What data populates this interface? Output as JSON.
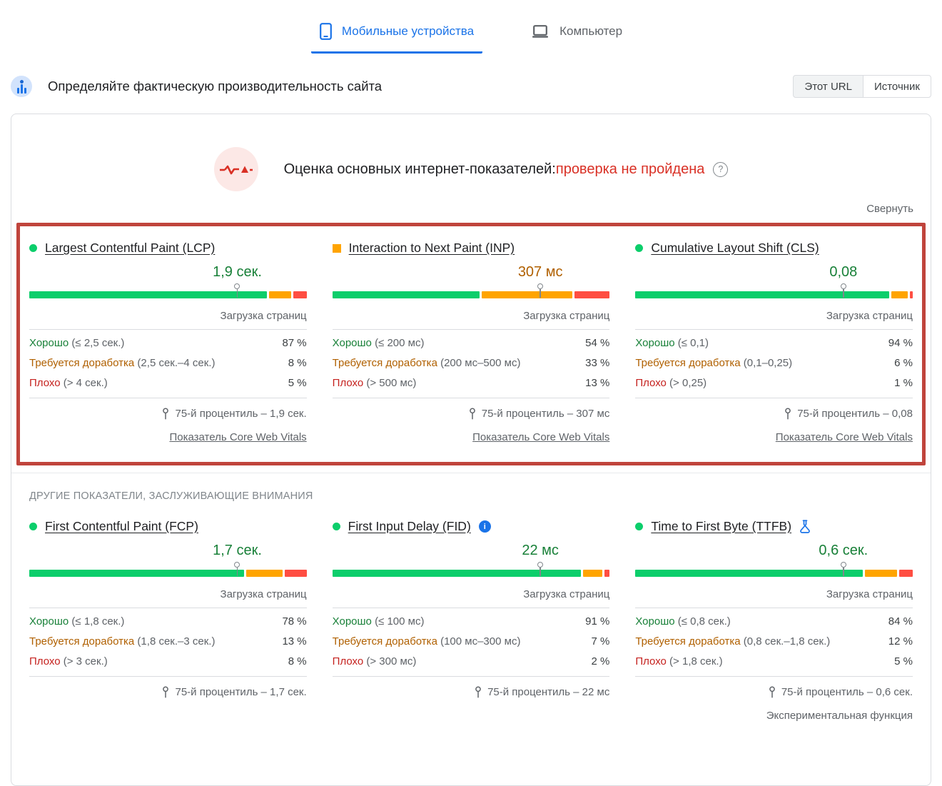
{
  "tabs": [
    {
      "label": "Мобильные устройства",
      "active": true
    },
    {
      "label": "Компьютер",
      "active": false
    }
  ],
  "header": {
    "title": "Определяйте фактическую производительность сайта",
    "scope_buttons": [
      {
        "label": "Этот URL",
        "selected": true
      },
      {
        "label": "Источник",
        "selected": false
      }
    ]
  },
  "assessment": {
    "prefix": "Оценка основных интернет-показателей:",
    "status": "проверка не пройдена",
    "help_icon": "question-mark",
    "collapse_label": "Свернуть"
  },
  "labels": {
    "page_loads": "Загрузка страниц",
    "other_section": "ДРУГИЕ ПОКАЗАТЕЛИ, ЗАСЛУЖИВАЮЩИЕ ВНИМАНИЯ"
  },
  "colors": {
    "accent_blue": "#1a73e8",
    "bar_good": "#0cce6b",
    "bar_ni": "#ffa400",
    "bar_poor": "#ff4e42",
    "text_good": "#188038",
    "text_ni": "#b06000",
    "text_poor": "#c5221f",
    "status_failed_red": "#d93025",
    "highlight_border_red": "#c0443c"
  },
  "core_metrics": [
    {
      "id": "lcp",
      "status": "good",
      "title": "Largest Contentful Paint (LCP)",
      "value": "1,9 сек.",
      "pin_percent": 75,
      "distribution": {
        "good": 87,
        "ni": 8,
        "poor": 5
      },
      "rows": [
        {
          "name": "Хорошо",
          "range": "(≤ 2,5 сек.)",
          "percent": "87 %"
        },
        {
          "name": "Требуется доработка",
          "range": "(2,5 сек.–4 сек.)",
          "percent": "8 %"
        },
        {
          "name": "Плохо",
          "range": "(> 4 сек.)",
          "percent": "5 %"
        }
      ],
      "percentile": "75-й процентиль – 1,9 сек.",
      "footer_link": "Показатель Core Web Vitals"
    },
    {
      "id": "inp",
      "status": "ni",
      "title": "Interaction to Next Paint (INP)",
      "value": "307 мс",
      "pin_percent": 75,
      "distribution": {
        "good": 54,
        "ni": 33,
        "poor": 13
      },
      "rows": [
        {
          "name": "Хорошо",
          "range": "(≤ 200 мс)",
          "percent": "54 %"
        },
        {
          "name": "Требуется доработка",
          "range": "(200 мс–500 мс)",
          "percent": "33 %"
        },
        {
          "name": "Плохо",
          "range": "(> 500 мс)",
          "percent": "13 %"
        }
      ],
      "percentile": "75-й процентиль – 307 мс",
      "footer_link": "Показатель Core Web Vitals"
    },
    {
      "id": "cls",
      "status": "good",
      "title": "Cumulative Layout Shift (CLS)",
      "value": "0,08",
      "pin_percent": 75,
      "distribution": {
        "good": 94,
        "ni": 6,
        "poor": 1
      },
      "rows": [
        {
          "name": "Хорошо",
          "range": "(≤ 0,1)",
          "percent": "94 %"
        },
        {
          "name": "Требуется доработка",
          "range": "(0,1–0,25)",
          "percent": "6 %"
        },
        {
          "name": "Плохо",
          "range": "(> 0,25)",
          "percent": "1 %"
        }
      ],
      "percentile": "75-й процентиль – 0,08",
      "footer_link": "Показатель Core Web Vitals"
    }
  ],
  "other_metrics": [
    {
      "id": "fcp",
      "status": "good",
      "title": "First Contentful Paint (FCP)",
      "value": "1,7 сек.",
      "pin_percent": 75,
      "distribution": {
        "good": 78,
        "ni": 13,
        "poor": 8
      },
      "rows": [
        {
          "name": "Хорошо",
          "range": "(≤ 1,8 сек.)",
          "percent": "78 %"
        },
        {
          "name": "Требуется доработка",
          "range": "(1,8 сек.–3 сек.)",
          "percent": "13 %"
        },
        {
          "name": "Плохо",
          "range": "(> 3 сек.)",
          "percent": "8 %"
        }
      ],
      "percentile": "75-й процентиль – 1,7 сек."
    },
    {
      "id": "fid",
      "status": "good",
      "title": "First Input Delay (FID)",
      "title_icon": "info",
      "value": "22 мс",
      "pin_percent": 75,
      "distribution": {
        "good": 91,
        "ni": 7,
        "poor": 2
      },
      "rows": [
        {
          "name": "Хорошо",
          "range": "(≤ 100 мс)",
          "percent": "91 %"
        },
        {
          "name": "Требуется доработка",
          "range": "(100 мс–300 мс)",
          "percent": "7 %"
        },
        {
          "name": "Плохо",
          "range": "(> 300 мс)",
          "percent": "2 %"
        }
      ],
      "percentile": "75-й процентиль – 22 мс"
    },
    {
      "id": "ttfb",
      "status": "good",
      "title": "Time to First Byte (TTFB)",
      "title_icon": "flask",
      "value": "0,6 сек.",
      "pin_percent": 75,
      "distribution": {
        "good": 84,
        "ni": 12,
        "poor": 5
      },
      "rows": [
        {
          "name": "Хорошо",
          "range": "(≤ 0,8 сек.)",
          "percent": "84 %"
        },
        {
          "name": "Требуется доработка",
          "range": "(0,8 сек.–1,8 сек.)",
          "percent": "12 %"
        },
        {
          "name": "Плохо",
          "range": "(> 1,8 сек.)",
          "percent": "5 %"
        }
      ],
      "percentile": "75-й процентиль – 0,6 сек.",
      "footer_note": "Экспериментальная функция"
    }
  ]
}
